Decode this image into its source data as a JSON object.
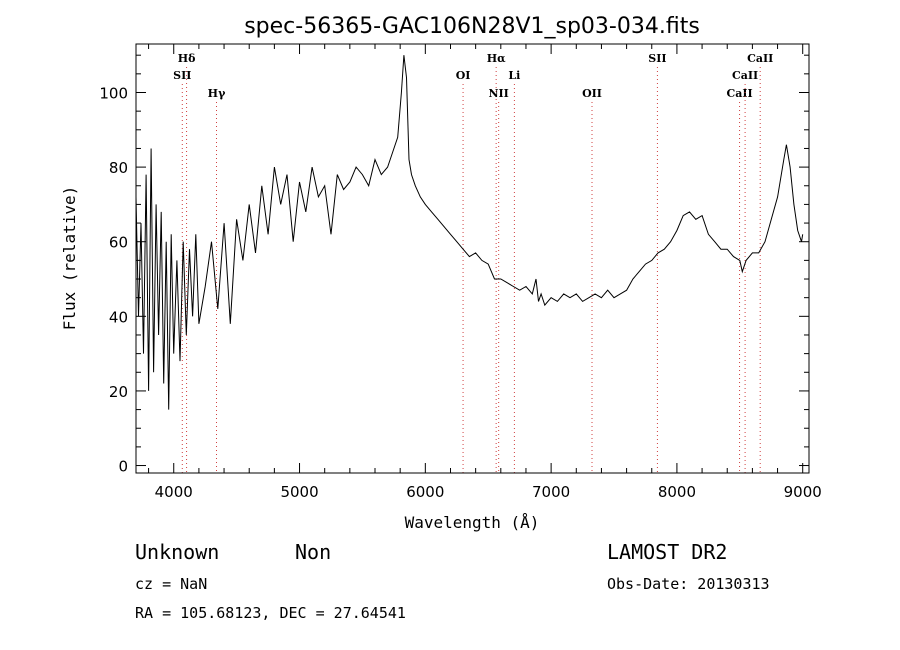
{
  "chart_data": {
    "type": "line",
    "title": "spec-56365-GAC106N28V1_sp03-034.fits",
    "xlabel": "Wavelength (Å)",
    "ylabel": "Flux (relative)",
    "xlim": [
      3700,
      9050
    ],
    "ylim": [
      -2,
      113
    ],
    "xticks": [
      4000,
      5000,
      6000,
      7000,
      8000,
      9000
    ],
    "yticks": [
      0,
      20,
      40,
      60,
      80,
      100
    ],
    "grid": false,
    "series": [
      {
        "x": [
          3700,
          3720,
          3740,
          3760,
          3780,
          3800,
          3820,
          3840,
          3860,
          3880,
          3900,
          3920,
          3940,
          3960,
          3980,
          4000,
          4025,
          4050,
          4075,
          4100,
          4125,
          4150,
          4175,
          4200,
          4250,
          4300,
          4350,
          4400,
          4450,
          4500,
          4550,
          4600,
          4650,
          4700,
          4750,
          4800,
          4850,
          4900,
          4950,
          5000,
          5050,
          5100,
          5150,
          5200,
          5250,
          5300,
          5350,
          5400,
          5450,
          5500,
          5550,
          5600,
          5650,
          5700,
          5750,
          5780,
          5810,
          5830,
          5850,
          5870,
          5890,
          5920,
          5960,
          6000,
          6050,
          6100,
          6150,
          6200,
          6250,
          6300,
          6350,
          6400,
          6450,
          6500,
          6550,
          6600,
          6650,
          6700,
          6750,
          6800,
          6850,
          6880,
          6900,
          6920,
          6950,
          7000,
          7050,
          7100,
          7150,
          7200,
          7250,
          7300,
          7350,
          7400,
          7450,
          7500,
          7550,
          7600,
          7650,
          7700,
          7750,
          7800,
          7850,
          7900,
          7950,
          8000,
          8050,
          8100,
          8150,
          8200,
          8250,
          8300,
          8350,
          8400,
          8450,
          8500,
          8520,
          8550,
          8600,
          8650,
          8700,
          8750,
          8800,
          8830,
          8850,
          8870,
          8900,
          8930,
          8960,
          8990,
          9000
        ],
        "y": [
          72,
          40,
          65,
          30,
          78,
          20,
          85,
          25,
          70,
          35,
          68,
          22,
          60,
          15,
          62,
          30,
          55,
          28,
          60,
          35,
          58,
          40,
          62,
          38,
          48,
          60,
          42,
          65,
          38,
          66,
          55,
          70,
          57,
          75,
          62,
          80,
          70,
          78,
          60,
          76,
          68,
          80,
          72,
          75,
          62,
          78,
          74,
          76,
          80,
          78,
          75,
          82,
          78,
          80,
          85,
          88,
          100,
          110,
          104,
          82,
          78,
          75,
          72,
          70,
          68,
          66,
          64,
          62,
          60,
          58,
          56,
          57,
          55,
          54,
          50,
          50,
          49,
          48,
          47,
          48,
          46,
          50,
          44,
          46,
          43,
          45,
          44,
          46,
          45,
          46,
          44,
          45,
          46,
          45,
          47,
          45,
          46,
          47,
          50,
          52,
          54,
          55,
          57,
          58,
          60,
          63,
          67,
          68,
          66,
          67,
          62,
          60,
          58,
          58,
          56,
          55,
          52,
          55,
          57,
          57,
          60,
          66,
          72,
          78,
          82,
          86,
          80,
          70,
          63,
          60,
          62
        ]
      }
    ],
    "spectral_lines": [
      {
        "label": "Hδ",
        "x": 4102,
        "label_row": 0
      },
      {
        "label": "SII",
        "x": 4068,
        "label_row": 1
      },
      {
        "label": "Hγ",
        "x": 4340,
        "label_row": 2
      },
      {
        "label": "OI",
        "x": 6300,
        "label_row": 1
      },
      {
        "label": "Hα",
        "x": 6563,
        "label_row": 0
      },
      {
        "label": "NII",
        "x": 6583,
        "label_row": 2
      },
      {
        "label": "Li",
        "x": 6708,
        "label_row": 1
      },
      {
        "label": "OII",
        "x": 7325,
        "label_row": 2
      },
      {
        "label": "SII",
        "x": 7845,
        "label_row": 0
      },
      {
        "label": "CaII",
        "x": 8498,
        "label_row": 2
      },
      {
        "label": "CaII",
        "x": 8542,
        "label_row": 1
      },
      {
        "label": "CaII",
        "x": 8662,
        "label_row": 0
      }
    ]
  },
  "info": {
    "class_label": "Unknown",
    "subclass_label": "Non",
    "survey": "LAMOST DR2",
    "cz": "cz = NaN",
    "obs_date": "Obs-Date: 20130313",
    "coords": "RA = 105.68123, DEC =  27.64541"
  }
}
